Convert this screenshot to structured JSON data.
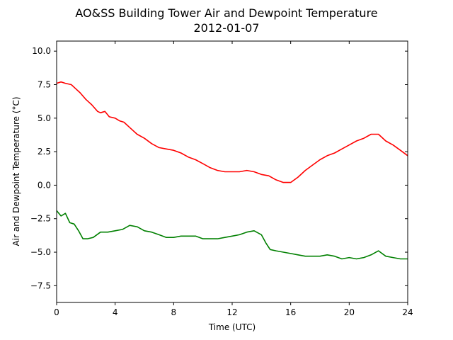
{
  "chart_data": {
    "type": "line",
    "title": "AO&SS Building Tower Air and Dewpoint Temperature",
    "subtitle": "2012-01-07",
    "xlabel": "Time (UTC)",
    "ylabel": "Air and Dewpoint Temperature (°C)",
    "xlim": [
      0,
      24
    ],
    "ylim": [
      -8.75,
      10.75
    ],
    "xticks": [
      0,
      4,
      8,
      12,
      16,
      20,
      24
    ],
    "yticks": [
      -7.5,
      -5.0,
      -2.5,
      0.0,
      2.5,
      5.0,
      7.5,
      10.0
    ],
    "ytick_labels": [
      "−7.5",
      "−5.0",
      "−2.5",
      "0.0",
      "2.5",
      "5.0",
      "7.5",
      "10.0"
    ],
    "grid": false,
    "series": [
      {
        "color": "#ff0000",
        "x": [
          0,
          0.3,
          0.6,
          1.0,
          1.3,
          1.6,
          2.0,
          2.4,
          2.8,
          3.0,
          3.3,
          3.6,
          4.0,
          4.3,
          4.6,
          5.0,
          5.5,
          6.0,
          6.5,
          7.0,
          7.5,
          8.0,
          8.5,
          9.0,
          9.5,
          10.0,
          10.5,
          11.0,
          11.5,
          12.0,
          12.5,
          13.0,
          13.5,
          14.0,
          14.5,
          15.0,
          15.5,
          16.0,
          16.5,
          17.0,
          17.5,
          18.0,
          18.5,
          19.0,
          19.5,
          20.0,
          20.5,
          21.0,
          21.5,
          22.0,
          22.5,
          23.0,
          23.5,
          24.0
        ],
        "y": [
          7.6,
          7.7,
          7.6,
          7.5,
          7.2,
          6.9,
          6.4,
          6.0,
          5.5,
          5.4,
          5.5,
          5.1,
          5.0,
          4.8,
          4.7,
          4.3,
          3.8,
          3.5,
          3.1,
          2.8,
          2.7,
          2.6,
          2.4,
          2.1,
          1.9,
          1.6,
          1.3,
          1.1,
          1.0,
          1.0,
          1.0,
          1.1,
          1.0,
          0.8,
          0.7,
          0.4,
          0.2,
          0.2,
          0.6,
          1.1,
          1.5,
          1.9,
          2.2,
          2.4,
          2.7,
          3.0,
          3.3,
          3.5,
          3.8,
          3.8,
          3.3,
          3.0,
          2.6,
          2.2
        ]
      },
      {
        "color": "#008000",
        "x": [
          0,
          0.3,
          0.6,
          0.9,
          1.2,
          1.5,
          1.8,
          2.1,
          2.5,
          3.0,
          3.5,
          4.0,
          4.5,
          5.0,
          5.5,
          6.0,
          6.5,
          7.0,
          7.5,
          8.0,
          8.5,
          9.0,
          9.5,
          10.0,
          10.5,
          11.0,
          11.5,
          12.0,
          12.5,
          13.0,
          13.5,
          14.0,
          14.3,
          14.6,
          15.0,
          15.5,
          16.0,
          16.5,
          17.0,
          17.5,
          18.0,
          18.5,
          19.0,
          19.5,
          20.0,
          20.5,
          21.0,
          21.5,
          22.0,
          22.5,
          23.0,
          23.5,
          24.0
        ],
        "y": [
          -1.9,
          -2.3,
          -2.1,
          -2.8,
          -2.9,
          -3.4,
          -4.0,
          -4.0,
          -3.9,
          -3.5,
          -3.5,
          -3.4,
          -3.3,
          -3.0,
          -3.1,
          -3.4,
          -3.5,
          -3.7,
          -3.9,
          -3.9,
          -3.8,
          -3.8,
          -3.8,
          -4.0,
          -4.0,
          -4.0,
          -3.9,
          -3.8,
          -3.7,
          -3.5,
          -3.4,
          -3.7,
          -4.3,
          -4.8,
          -4.9,
          -5.0,
          -5.1,
          -5.2,
          -5.3,
          -5.3,
          -5.3,
          -5.2,
          -5.3,
          -5.5,
          -5.4,
          -5.5,
          -5.4,
          -5.2,
          -4.9,
          -5.3,
          -5.4,
          -5.5,
          -5.5
        ]
      }
    ]
  }
}
